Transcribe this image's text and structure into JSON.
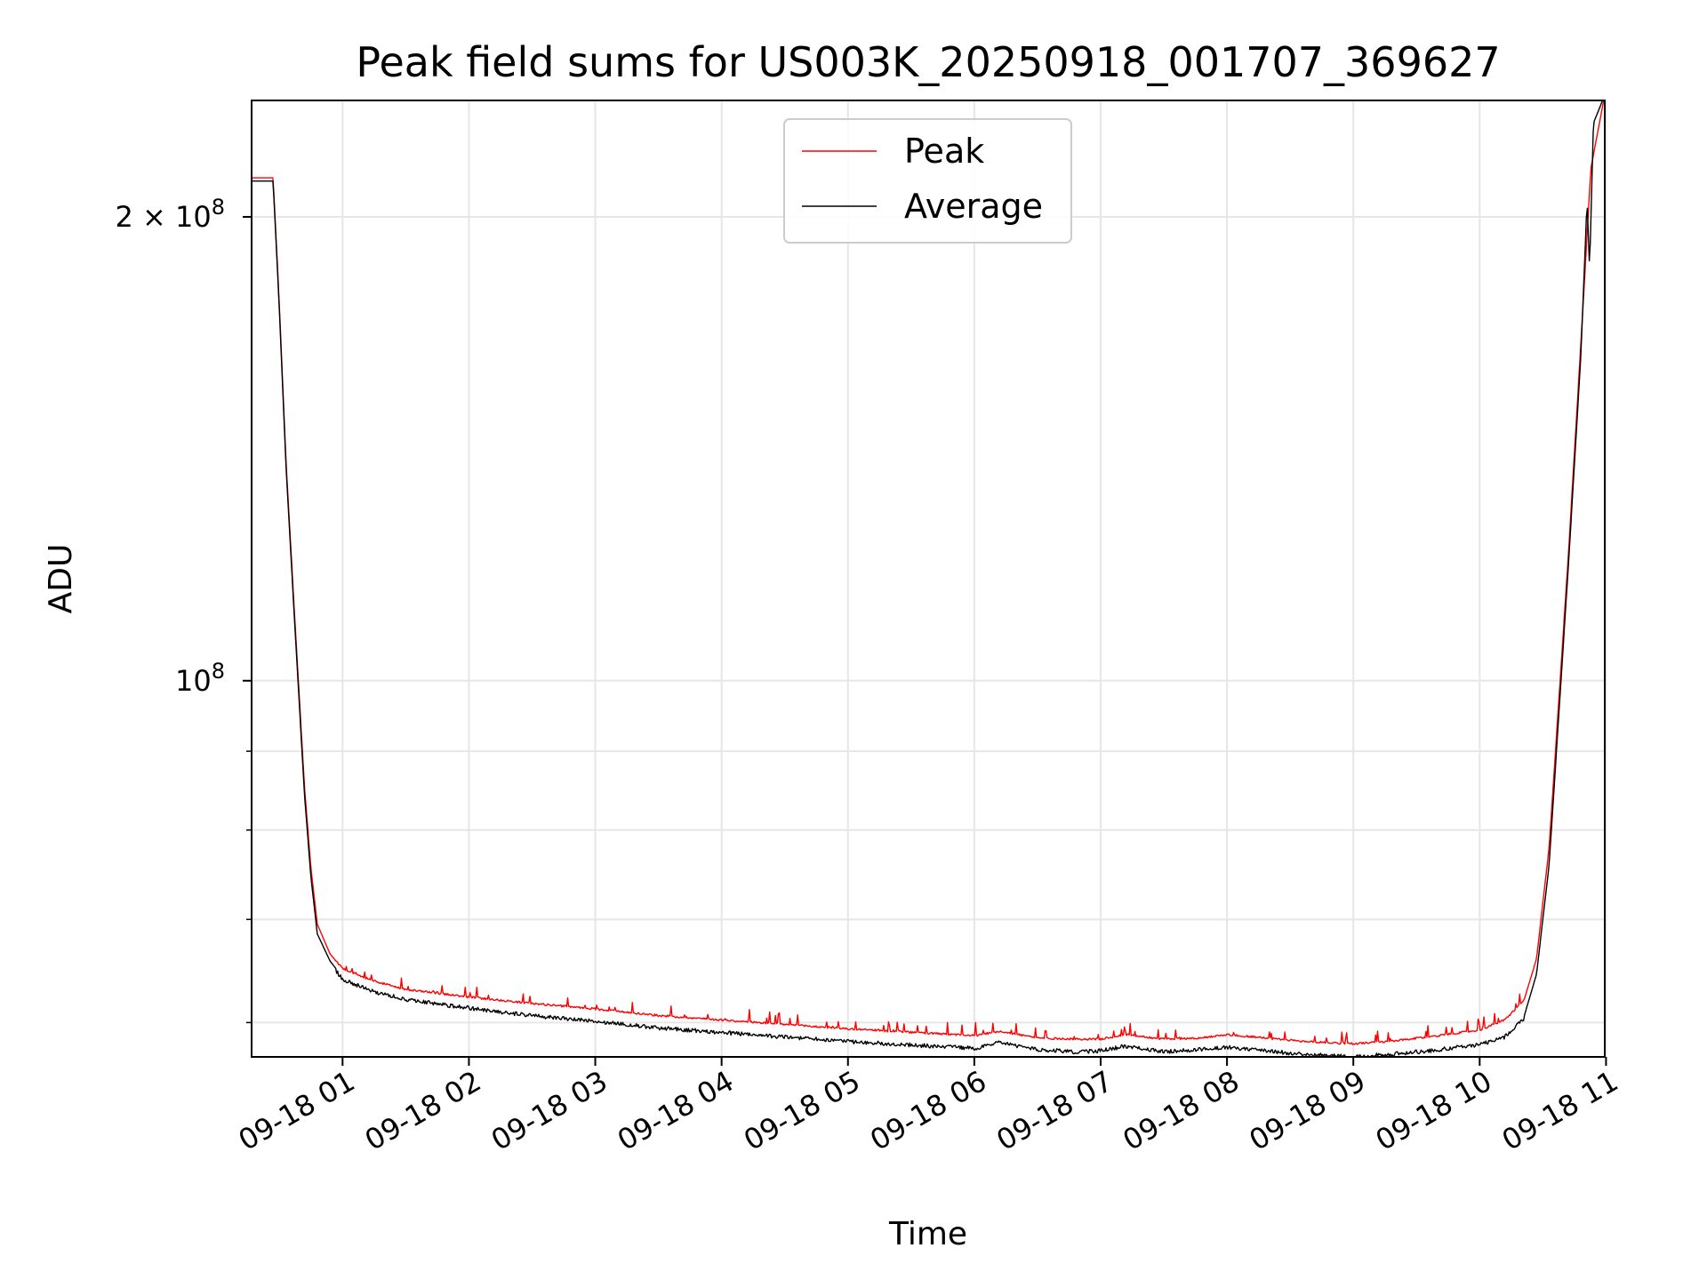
{
  "chart_data": {
    "type": "line",
    "title": "Peak field sums for US003K_20250918_001707_369627",
    "xlabel": "Time",
    "ylabel": "ADU",
    "yscale": "log",
    "ylim": [
      57000000,
      238000000
    ],
    "xlim": [
      0.28,
      10.99
    ],
    "x_unit": "hours after 2025-09-18 00:00",
    "grid": true,
    "legend_position": "top-center",
    "x_ticks": [
      {
        "value": 1,
        "label": "09-18 01"
      },
      {
        "value": 2,
        "label": "09-18 02"
      },
      {
        "value": 3,
        "label": "09-18 03"
      },
      {
        "value": 4,
        "label": "09-18 04"
      },
      {
        "value": 5,
        "label": "09-18 05"
      },
      {
        "value": 6,
        "label": "09-18 06"
      },
      {
        "value": 7,
        "label": "09-18 07"
      },
      {
        "value": 8,
        "label": "09-18 08"
      },
      {
        "value": 9,
        "label": "09-18 09"
      },
      {
        "value": 10,
        "label": "09-18 10"
      },
      {
        "value": 11,
        "label": "09-18 11"
      }
    ],
    "y_ticks": [
      {
        "value": 100000000,
        "label": "10^8",
        "base": "10",
        "exp": "8"
      },
      {
        "value": 200000000,
        "label": "2×10^8",
        "base": "2 × 10",
        "exp": "8"
      }
    ],
    "y_minor_ticks": [
      60000000,
      70000000,
      80000000,
      90000000
    ],
    "series": [
      {
        "name": "Peak",
        "color": "#ff0000",
        "x": [
          0.28,
          0.4,
          0.45,
          0.5,
          0.55,
          0.6,
          0.65,
          0.7,
          0.75,
          0.8,
          0.9,
          1.0,
          1.25,
          1.5,
          2.0,
          2.5,
          3.0,
          3.5,
          4.0,
          4.5,
          5.0,
          5.5,
          6.0,
          6.2,
          6.5,
          6.8,
          7.0,
          7.2,
          7.5,
          7.8,
          8.0,
          8.3,
          8.6,
          9.0,
          9.3,
          9.6,
          10.0,
          10.2,
          10.35,
          10.45,
          10.55,
          10.6,
          10.7,
          10.8,
          10.88,
          10.99
        ],
        "values": [
          212000000,
          212000000,
          212000000,
          175000000,
          140000000,
          118000000,
          100000000,
          85000000,
          75500000,
          69500000,
          66500000,
          65000000,
          63800000,
          63000000,
          62300000,
          61700000,
          61200000,
          60600000,
          60200000,
          59800000,
          59400000,
          59100000,
          58800000,
          59200000,
          58600000,
          58500000,
          58500000,
          58900000,
          58500000,
          58600000,
          58900000,
          58600000,
          58300000,
          58100000,
          58300000,
          58700000,
          59300000,
          60200000,
          62000000,
          66000000,
          78000000,
          90000000,
          120000000,
          165000000,
          215000000,
          240000000
        ]
      },
      {
        "name": "Average",
        "color": "#000000",
        "x": [
          0.28,
          0.4,
          0.45,
          0.5,
          0.55,
          0.6,
          0.65,
          0.7,
          0.75,
          0.8,
          0.9,
          1.0,
          1.25,
          1.5,
          2.0,
          2.5,
          3.0,
          3.5,
          4.0,
          4.5,
          5.0,
          5.5,
          6.0,
          6.2,
          6.5,
          6.8,
          7.0,
          7.2,
          7.5,
          7.8,
          8.0,
          8.3,
          8.6,
          9.0,
          9.3,
          9.6,
          10.0,
          10.2,
          10.35,
          10.45,
          10.55,
          10.6,
          10.7,
          10.8,
          10.85,
          10.87,
          10.9,
          10.99
        ],
        "values": [
          211000000,
          211000000,
          211000000,
          174000000,
          139000000,
          117000000,
          99000000,
          84000000,
          74500000,
          68500000,
          65800000,
          64200000,
          63000000,
          62300000,
          61500000,
          60800000,
          60300000,
          59700000,
          59300000,
          58900000,
          58500000,
          58200000,
          57900000,
          58400000,
          57800000,
          57600000,
          57700000,
          58100000,
          57600000,
          57800000,
          58000000,
          57700000,
          57400000,
          57200000,
          57400000,
          57700000,
          58200000,
          58900000,
          60500000,
          64500000,
          76000000,
          88000000,
          118000000,
          162000000,
          205000000,
          185000000,
          230000000,
          240000000
        ]
      }
    ]
  }
}
